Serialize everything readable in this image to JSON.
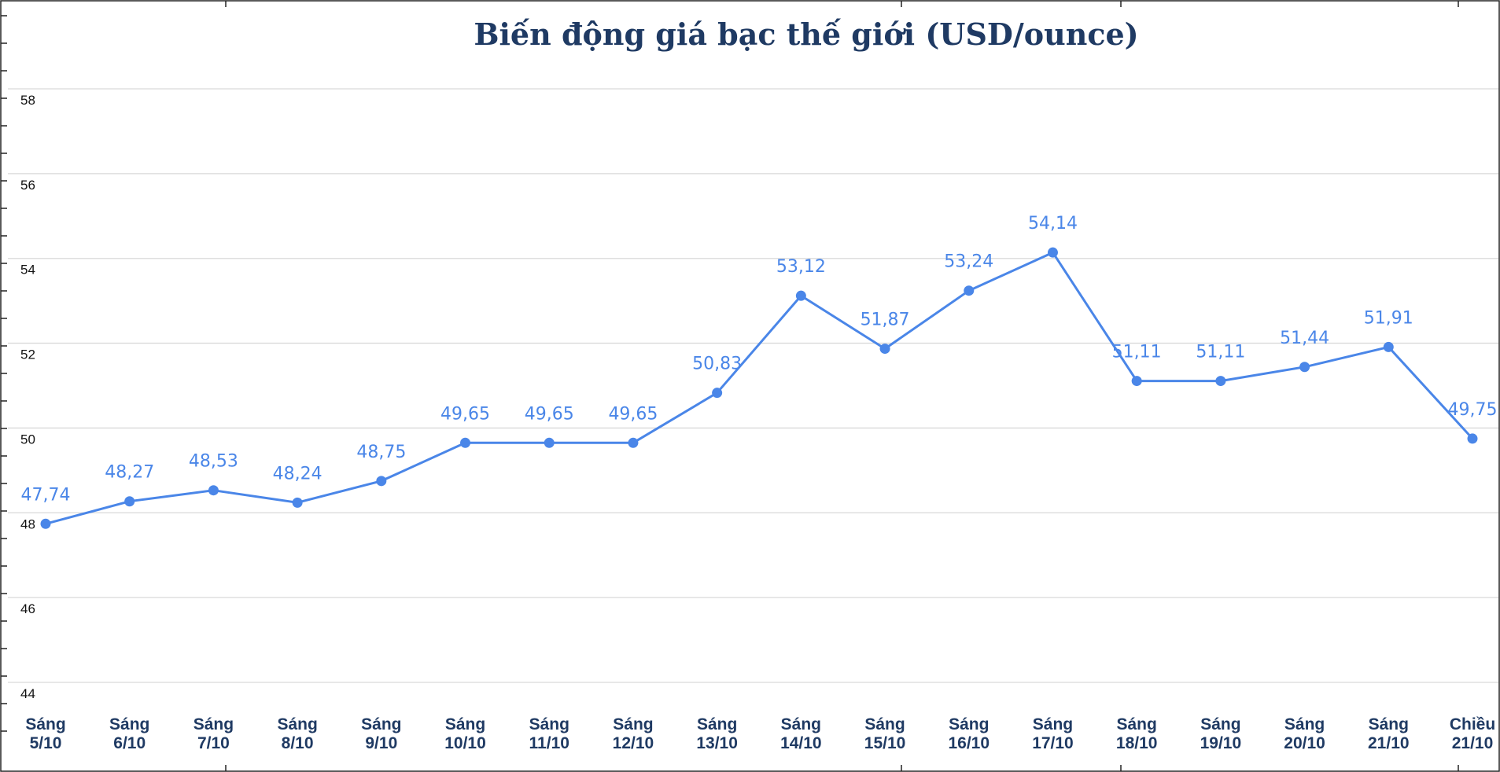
{
  "chart_data": {
    "type": "line",
    "title": "Biến động giá bạc thế giới (USD/ounce)",
    "xlabel": "",
    "ylabel": "",
    "categories": [
      [
        "Sáng",
        "5/10"
      ],
      [
        "Sáng",
        "6/10"
      ],
      [
        "Sáng",
        "7/10"
      ],
      [
        "Sáng",
        "8/10"
      ],
      [
        "Sáng",
        "9/10"
      ],
      [
        "Sáng",
        "10/10"
      ],
      [
        "Sáng",
        "11/10"
      ],
      [
        "Sáng",
        "12/10"
      ],
      [
        "Sáng",
        "13/10"
      ],
      [
        "Sáng",
        "14/10"
      ],
      [
        "Sáng",
        "15/10"
      ],
      [
        "Sáng",
        "16/10"
      ],
      [
        "Sáng",
        "17/10"
      ],
      [
        "Sáng",
        "18/10"
      ],
      [
        "Sáng",
        "19/10"
      ],
      [
        "Sáng",
        "20/10"
      ],
      [
        "Sáng",
        "21/10"
      ],
      [
        "Chiều",
        "21/10"
      ]
    ],
    "series": [
      {
        "values": [
          47.74,
          48.27,
          48.53,
          48.24,
          48.75,
          49.65,
          49.65,
          49.65,
          50.83,
          53.12,
          51.87,
          53.24,
          54.14,
          51.11,
          51.11,
          51.44,
          51.91,
          49.75
        ],
        "labels": [
          "47,74",
          "48,27",
          "48,53",
          "48,24",
          "48,75",
          "49,65",
          "49,65",
          "49,65",
          "50,83",
          "53,12",
          "51,87",
          "53,24",
          "54,14",
          "51,11",
          "51,11",
          "51,44",
          "51,91",
          "49,75"
        ]
      }
    ],
    "ylim": [
      44,
      58
    ],
    "yticks": [
      44,
      46,
      48,
      50,
      52,
      54,
      56,
      58
    ],
    "grid": true,
    "legend": "none",
    "colors": {
      "line": "#4a86e8",
      "label": "#4a86e8",
      "title": "#1f3a63",
      "xtick": "#1f3a63",
      "grid": "#d9d9d9"
    }
  }
}
